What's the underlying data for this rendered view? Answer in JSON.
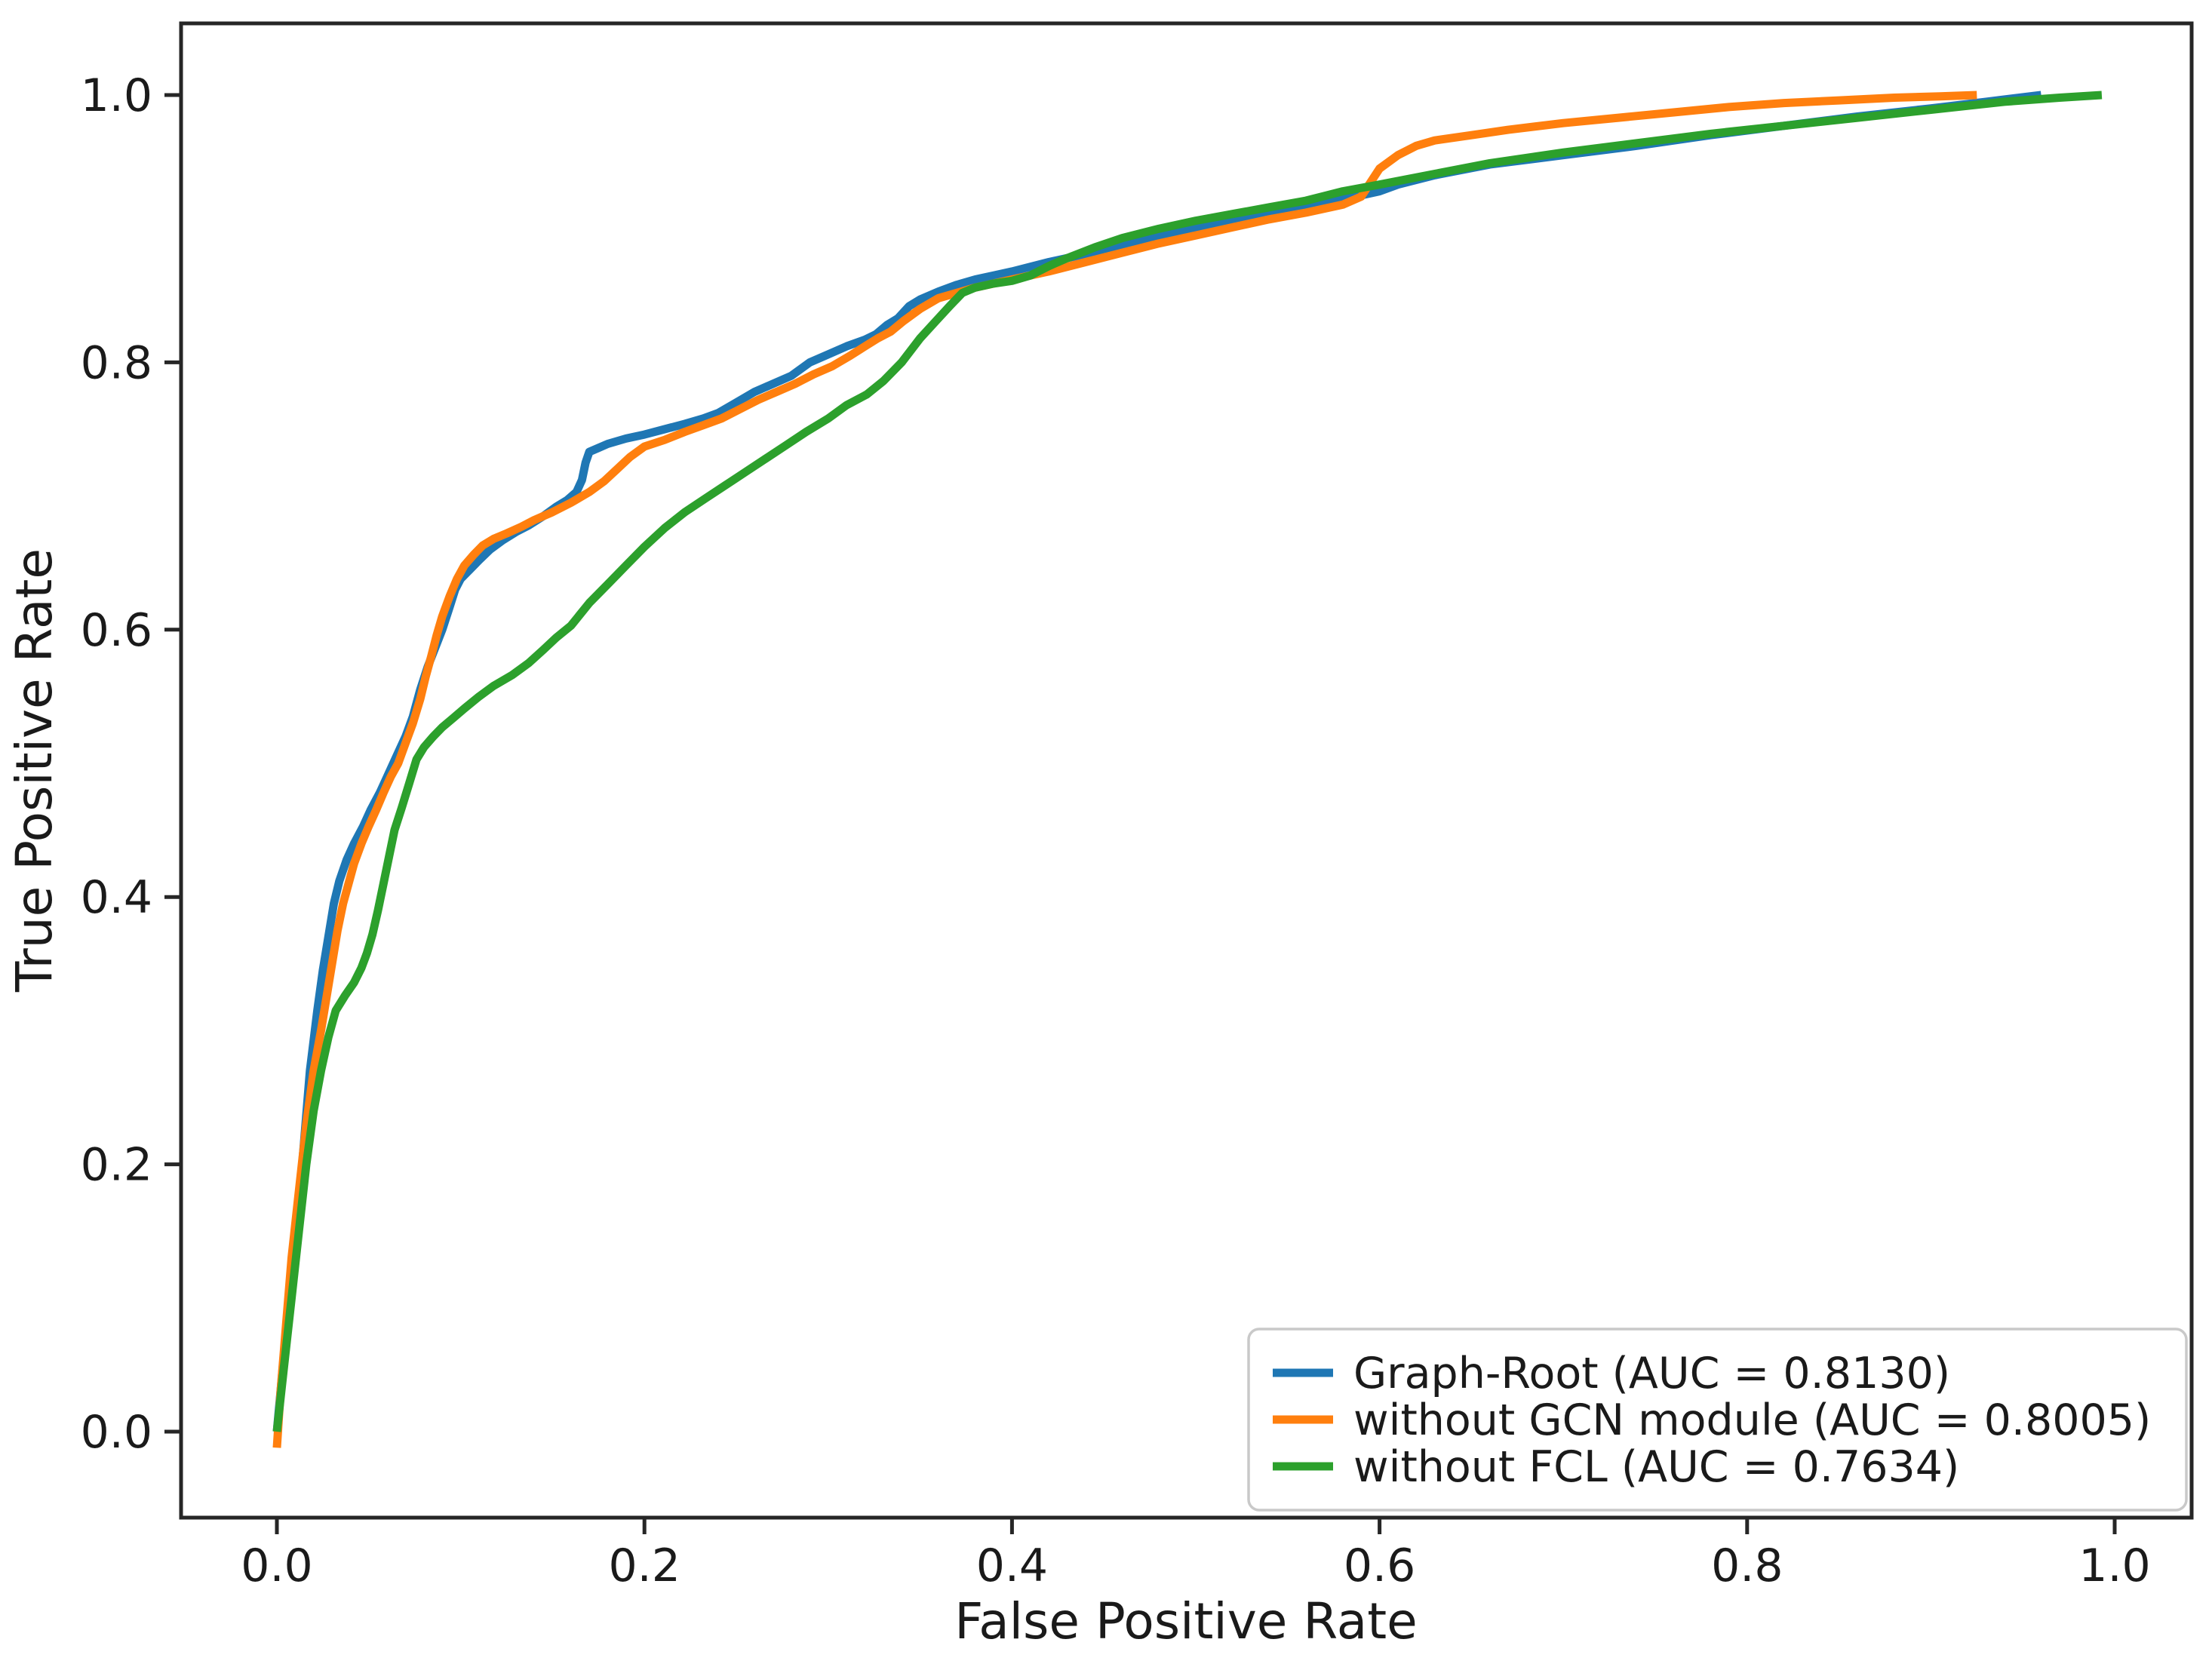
{
  "chart_data": {
    "type": "line",
    "title": "",
    "xlabel": "False Positive Rate",
    "ylabel": "True Positive Rate",
    "xlim": [
      -0.052,
      1.042
    ],
    "ylim": [
      -0.064,
      1.054
    ],
    "x_ticks": [
      0.0,
      0.2,
      0.4,
      0.6,
      0.8,
      1.0
    ],
    "y_ticks": [
      0.0,
      0.2,
      0.4,
      0.6,
      0.8,
      1.0
    ],
    "grid": false,
    "legend_position": "lower right",
    "axis_color": "#262626",
    "series": [
      {
        "name": "Graph-Root (AUC = 0.8130)",
        "auc": 0.813,
        "color": "#1f77b4",
        "points": [
          [
            0,
            0
          ],
          [
            0.004,
            0.06
          ],
          [
            0.008,
            0.12
          ],
          [
            0.012,
            0.17
          ],
          [
            0.015,
            0.22
          ],
          [
            0.018,
            0.27
          ],
          [
            0.022,
            0.315
          ],
          [
            0.025,
            0.345
          ],
          [
            0.028,
            0.37
          ],
          [
            0.031,
            0.395
          ],
          [
            0.034,
            0.412
          ],
          [
            0.038,
            0.428
          ],
          [
            0.042,
            0.44
          ],
          [
            0.047,
            0.453
          ],
          [
            0.051,
            0.465
          ],
          [
            0.056,
            0.478
          ],
          [
            0.06,
            0.49
          ],
          [
            0.065,
            0.505
          ],
          [
            0.07,
            0.52
          ],
          [
            0.074,
            0.535
          ],
          [
            0.078,
            0.555
          ],
          [
            0.082,
            0.572
          ],
          [
            0.086,
            0.586
          ],
          [
            0.09,
            0.6
          ],
          [
            0.094,
            0.617
          ],
          [
            0.097,
            0.63
          ],
          [
            0.1,
            0.638
          ],
          [
            0.105,
            0.645
          ],
          [
            0.11,
            0.652
          ],
          [
            0.116,
            0.66
          ],
          [
            0.123,
            0.667
          ],
          [
            0.13,
            0.673
          ],
          [
            0.137,
            0.678
          ],
          [
            0.145,
            0.685
          ],
          [
            0.152,
            0.692
          ],
          [
            0.158,
            0.697
          ],
          [
            0.163,
            0.703
          ],
          [
            0.166,
            0.712
          ],
          [
            0.168,
            0.725
          ],
          [
            0.17,
            0.733
          ],
          [
            0.175,
            0.736
          ],
          [
            0.18,
            0.739
          ],
          [
            0.19,
            0.743
          ],
          [
            0.2,
            0.746
          ],
          [
            0.211,
            0.75
          ],
          [
            0.222,
            0.754
          ],
          [
            0.232,
            0.758
          ],
          [
            0.24,
            0.762
          ],
          [
            0.25,
            0.77
          ],
          [
            0.26,
            0.778
          ],
          [
            0.27,
            0.784
          ],
          [
            0.28,
            0.79
          ],
          [
            0.29,
            0.8
          ],
          [
            0.3,
            0.806
          ],
          [
            0.31,
            0.812
          ],
          [
            0.32,
            0.817
          ],
          [
            0.326,
            0.821
          ],
          [
            0.332,
            0.828
          ],
          [
            0.338,
            0.833
          ],
          [
            0.344,
            0.842
          ],
          [
            0.35,
            0.847
          ],
          [
            0.36,
            0.853
          ],
          [
            0.37,
            0.858
          ],
          [
            0.38,
            0.862
          ],
          [
            0.39,
            0.865
          ],
          [
            0.4,
            0.868
          ],
          [
            0.42,
            0.875
          ],
          [
            0.44,
            0.881
          ],
          [
            0.46,
            0.888
          ],
          [
            0.48,
            0.894
          ],
          [
            0.5,
            0.9
          ],
          [
            0.52,
            0.906
          ],
          [
            0.54,
            0.912
          ],
          [
            0.56,
            0.917
          ],
          [
            0.58,
            0.922
          ],
          [
            0.6,
            0.928
          ],
          [
            0.61,
            0.933
          ],
          [
            0.63,
            0.94
          ],
          [
            0.66,
            0.948
          ],
          [
            0.7,
            0.955
          ],
          [
            0.74,
            0.962
          ],
          [
            0.78,
            0.97
          ],
          [
            0.82,
            0.977
          ],
          [
            0.86,
            0.984
          ],
          [
            0.9,
            0.99
          ],
          [
            0.93,
            0.995
          ],
          [
            0.96,
            1.0
          ]
        ]
      },
      {
        "name": "without GCN module (AUC = 0.8005)",
        "auc": 0.8005,
        "color": "#ff7f0e",
        "points": [
          [
            0,
            -0.012
          ],
          [
            0.002,
            0.03
          ],
          [
            0.005,
            0.08
          ],
          [
            0.008,
            0.13
          ],
          [
            0.012,
            0.18
          ],
          [
            0.016,
            0.23
          ],
          [
            0.02,
            0.27
          ],
          [
            0.024,
            0.3
          ],
          [
            0.027,
            0.325
          ],
          [
            0.03,
            0.35
          ],
          [
            0.033,
            0.375
          ],
          [
            0.036,
            0.395
          ],
          [
            0.039,
            0.41
          ],
          [
            0.042,
            0.425
          ],
          [
            0.046,
            0.44
          ],
          [
            0.05,
            0.453
          ],
          [
            0.054,
            0.465
          ],
          [
            0.058,
            0.478
          ],
          [
            0.062,
            0.49
          ],
          [
            0.066,
            0.5
          ],
          [
            0.07,
            0.515
          ],
          [
            0.074,
            0.53
          ],
          [
            0.078,
            0.548
          ],
          [
            0.081,
            0.565
          ],
          [
            0.084,
            0.58
          ],
          [
            0.087,
            0.596
          ],
          [
            0.09,
            0.61
          ],
          [
            0.094,
            0.625
          ],
          [
            0.098,
            0.638
          ],
          [
            0.102,
            0.648
          ],
          [
            0.107,
            0.656
          ],
          [
            0.112,
            0.663
          ],
          [
            0.118,
            0.668
          ],
          [
            0.125,
            0.672
          ],
          [
            0.133,
            0.677
          ],
          [
            0.14,
            0.682
          ],
          [
            0.15,
            0.688
          ],
          [
            0.16,
            0.695
          ],
          [
            0.17,
            0.703
          ],
          [
            0.178,
            0.711
          ],
          [
            0.185,
            0.72
          ],
          [
            0.192,
            0.729
          ],
          [
            0.2,
            0.737
          ],
          [
            0.211,
            0.742
          ],
          [
            0.222,
            0.748
          ],
          [
            0.232,
            0.753
          ],
          [
            0.242,
            0.758
          ],
          [
            0.252,
            0.765
          ],
          [
            0.262,
            0.772
          ],
          [
            0.272,
            0.778
          ],
          [
            0.282,
            0.784
          ],
          [
            0.292,
            0.791
          ],
          [
            0.302,
            0.797
          ],
          [
            0.312,
            0.805
          ],
          [
            0.32,
            0.812
          ],
          [
            0.327,
            0.818
          ],
          [
            0.334,
            0.823
          ],
          [
            0.341,
            0.831
          ],
          [
            0.35,
            0.84
          ],
          [
            0.36,
            0.848
          ],
          [
            0.37,
            0.852
          ],
          [
            0.38,
            0.856
          ],
          [
            0.39,
            0.859
          ],
          [
            0.4,
            0.862
          ],
          [
            0.42,
            0.868
          ],
          [
            0.44,
            0.875
          ],
          [
            0.46,
            0.882
          ],
          [
            0.48,
            0.889
          ],
          [
            0.5,
            0.895
          ],
          [
            0.52,
            0.901
          ],
          [
            0.54,
            0.907
          ],
          [
            0.56,
            0.912
          ],
          [
            0.58,
            0.918
          ],
          [
            0.59,
            0.924
          ],
          [
            0.6,
            0.945
          ],
          [
            0.61,
            0.955
          ],
          [
            0.62,
            0.962
          ],
          [
            0.63,
            0.966
          ],
          [
            0.65,
            0.97
          ],
          [
            0.67,
            0.974
          ],
          [
            0.7,
            0.979
          ],
          [
            0.73,
            0.983
          ],
          [
            0.76,
            0.987
          ],
          [
            0.79,
            0.991
          ],
          [
            0.82,
            0.994
          ],
          [
            0.85,
            0.996
          ],
          [
            0.88,
            0.998
          ],
          [
            0.905,
            0.999
          ],
          [
            0.925,
            1.0
          ]
        ]
      },
      {
        "name": "without FCL (AUC = 0.7634)",
        "auc": 0.7634,
        "color": "#2ca02c",
        "points": [
          [
            0,
            0
          ],
          [
            0.004,
            0.05
          ],
          [
            0.008,
            0.1
          ],
          [
            0.012,
            0.15
          ],
          [
            0.016,
            0.2
          ],
          [
            0.02,
            0.24
          ],
          [
            0.024,
            0.27
          ],
          [
            0.028,
            0.295
          ],
          [
            0.032,
            0.315
          ],
          [
            0.037,
            0.326
          ],
          [
            0.042,
            0.336
          ],
          [
            0.046,
            0.347
          ],
          [
            0.049,
            0.358
          ],
          [
            0.052,
            0.372
          ],
          [
            0.055,
            0.39
          ],
          [
            0.058,
            0.41
          ],
          [
            0.061,
            0.43
          ],
          [
            0.064,
            0.45
          ],
          [
            0.068,
            0.467
          ],
          [
            0.072,
            0.485
          ],
          [
            0.076,
            0.503
          ],
          [
            0.08,
            0.512
          ],
          [
            0.085,
            0.52
          ],
          [
            0.09,
            0.527
          ],
          [
            0.096,
            0.534
          ],
          [
            0.102,
            0.541
          ],
          [
            0.11,
            0.55
          ],
          [
            0.118,
            0.558
          ],
          [
            0.128,
            0.566
          ],
          [
            0.137,
            0.575
          ],
          [
            0.145,
            0.585
          ],
          [
            0.152,
            0.594
          ],
          [
            0.16,
            0.603
          ],
          [
            0.17,
            0.62
          ],
          [
            0.18,
            0.634
          ],
          [
            0.19,
            0.648
          ],
          [
            0.2,
            0.662
          ],
          [
            0.211,
            0.676
          ],
          [
            0.222,
            0.688
          ],
          [
            0.233,
            0.698
          ],
          [
            0.244,
            0.708
          ],
          [
            0.255,
            0.718
          ],
          [
            0.266,
            0.728
          ],
          [
            0.277,
            0.738
          ],
          [
            0.288,
            0.748
          ],
          [
            0.3,
            0.758
          ],
          [
            0.31,
            0.768
          ],
          [
            0.321,
            0.776
          ],
          [
            0.33,
            0.786
          ],
          [
            0.34,
            0.8
          ],
          [
            0.35,
            0.818
          ],
          [
            0.358,
            0.83
          ],
          [
            0.366,
            0.842
          ],
          [
            0.373,
            0.852
          ],
          [
            0.38,
            0.856
          ],
          [
            0.39,
            0.859
          ],
          [
            0.4,
            0.861
          ],
          [
            0.41,
            0.865
          ],
          [
            0.42,
            0.872
          ],
          [
            0.43,
            0.878
          ],
          [
            0.445,
            0.886
          ],
          [
            0.46,
            0.893
          ],
          [
            0.48,
            0.9
          ],
          [
            0.5,
            0.906
          ],
          [
            0.52,
            0.911
          ],
          [
            0.54,
            0.916
          ],
          [
            0.56,
            0.921
          ],
          [
            0.58,
            0.928
          ],
          [
            0.6,
            0.933
          ],
          [
            0.63,
            0.941
          ],
          [
            0.66,
            0.949
          ],
          [
            0.7,
            0.957
          ],
          [
            0.74,
            0.964
          ],
          [
            0.78,
            0.971
          ],
          [
            0.82,
            0.977
          ],
          [
            0.86,
            0.983
          ],
          [
            0.9,
            0.989
          ],
          [
            0.94,
            0.995
          ],
          [
            0.97,
            0.998
          ],
          [
            0.993,
            1.0
          ]
        ]
      }
    ]
  }
}
